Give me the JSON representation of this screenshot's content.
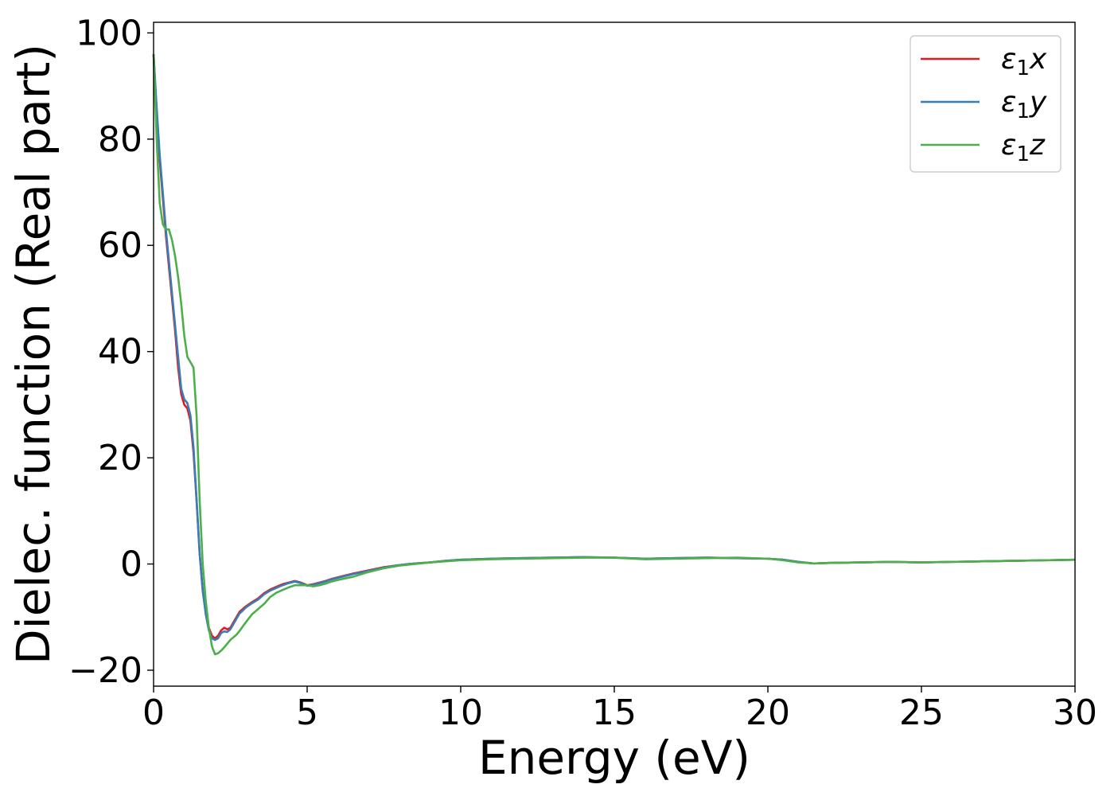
{
  "chart_data": {
    "type": "line",
    "xlabel": "Energy (eV)",
    "ylabel": "Dielec. function (Real part)",
    "xlim": [
      0,
      30
    ],
    "ylim": [
      -23,
      102
    ],
    "x_ticks": [
      0,
      5,
      10,
      15,
      20,
      25,
      30
    ],
    "y_ticks": [
      -20,
      0,
      20,
      40,
      60,
      80,
      100
    ],
    "x_tick_labels": [
      "0",
      "5",
      "10",
      "15",
      "20",
      "25",
      "30"
    ],
    "y_tick_labels": [
      "−20",
      "0",
      "20",
      "40",
      "60",
      "80",
      "100"
    ],
    "grid": false,
    "legend_position": "upper-right",
    "series": [
      {
        "name": "ε1x",
        "color": "#e41a1c",
        "x": [
          0,
          0.1,
          0.2,
          0.3,
          0.4,
          0.5,
          0.6,
          0.7,
          0.8,
          0.9,
          1.0,
          1.1,
          1.2,
          1.3,
          1.4,
          1.5,
          1.6,
          1.7,
          1.8,
          1.9,
          2.0,
          2.1,
          2.2,
          2.3,
          2.4,
          2.5,
          2.6,
          2.7,
          2.8,
          2.9,
          3.0,
          3.2,
          3.4,
          3.6,
          3.8,
          4.0,
          4.2,
          4.4,
          4.6,
          4.8,
          5.0,
          5.2,
          5.4,
          5.6,
          5.8,
          6.0,
          6.5,
          7.0,
          7.5,
          8.0,
          8.5,
          9.0,
          9.5,
          10.0,
          11.0,
          12.0,
          13.0,
          14.0,
          15.0,
          16.0,
          17.0,
          18.0,
          19.0,
          20.0,
          20.5,
          21.0,
          21.5,
          22.0,
          23.0,
          24.0,
          25.0,
          26.0,
          27.0,
          28.0,
          29.0,
          30.0
        ],
        "values": [
          96,
          85,
          76,
          69,
          62,
          56,
          50,
          44,
          37,
          32,
          30,
          29.3,
          27,
          21,
          12,
          2,
          -5,
          -9,
          -12,
          -13.5,
          -14,
          -13.5,
          -12.5,
          -12,
          -12.3,
          -12,
          -11,
          -10,
          -9,
          -8.5,
          -8,
          -7.2,
          -6.5,
          -5.5,
          -4.8,
          -4.3,
          -3.8,
          -3.5,
          -3.2,
          -3.5,
          -4,
          -3.8,
          -3.5,
          -3.2,
          -2.8,
          -2.5,
          -1.8,
          -1.2,
          -0.6,
          -0.2,
          0.1,
          0.3,
          0.6,
          0.8,
          1.0,
          1.1,
          1.2,
          1.3,
          1.2,
          1.0,
          1.1,
          1.2,
          1.1,
          1.0,
          0.8,
          0.4,
          0.1,
          0.2,
          0.3,
          0.4,
          0.3,
          0.4,
          0.5,
          0.6,
          0.7,
          0.8
        ]
      },
      {
        "name": "ε1y",
        "color": "#377eb8",
        "x": [
          0,
          0.1,
          0.2,
          0.3,
          0.4,
          0.5,
          0.6,
          0.7,
          0.8,
          0.9,
          1.0,
          1.1,
          1.2,
          1.3,
          1.4,
          1.5,
          1.6,
          1.7,
          1.8,
          1.9,
          2.0,
          2.1,
          2.2,
          2.3,
          2.4,
          2.5,
          2.6,
          2.7,
          2.8,
          2.9,
          3.0,
          3.2,
          3.4,
          3.6,
          3.8,
          4.0,
          4.2,
          4.4,
          4.6,
          4.8,
          5.0,
          5.2,
          5.4,
          5.6,
          5.8,
          6.0,
          6.5,
          7.0,
          7.5,
          8.0,
          8.5,
          9.0,
          9.5,
          10.0,
          11.0,
          12.0,
          13.0,
          14.0,
          15.0,
          16.0,
          17.0,
          18.0,
          19.0,
          20.0,
          20.5,
          21.0,
          21.5,
          22.0,
          23.0,
          24.0,
          25.0,
          26.0,
          27.0,
          28.0,
          29.0,
          30.0
        ],
        "values": [
          96,
          86,
          77,
          70,
          63,
          57,
          51,
          45,
          39,
          33,
          31,
          30.3,
          28,
          22,
          12,
          2,
          -5,
          -9.5,
          -12.5,
          -14,
          -14.3,
          -14,
          -13,
          -12.7,
          -12.8,
          -12.3,
          -11.3,
          -10.3,
          -9.3,
          -8.8,
          -8.2,
          -7.4,
          -6.7,
          -5.7,
          -5,
          -4.5,
          -4,
          -3.6,
          -3.3,
          -3.6,
          -4.1,
          -3.9,
          -3.6,
          -3.3,
          -2.9,
          -2.6,
          -1.9,
          -1.3,
          -0.7,
          -0.2,
          0.1,
          0.3,
          0.6,
          0.8,
          1.0,
          1.1,
          1.2,
          1.3,
          1.2,
          1.0,
          1.1,
          1.2,
          1.1,
          1.0,
          0.8,
          0.4,
          0.1,
          0.2,
          0.3,
          0.4,
          0.3,
          0.4,
          0.5,
          0.6,
          0.7,
          0.8
        ]
      },
      {
        "name": "ε1z",
        "color": "#4daf4a",
        "x": [
          0,
          0.1,
          0.2,
          0.3,
          0.4,
          0.5,
          0.6,
          0.7,
          0.8,
          0.9,
          1.0,
          1.1,
          1.2,
          1.3,
          1.4,
          1.5,
          1.6,
          1.7,
          1.8,
          1.9,
          2.0,
          2.1,
          2.2,
          2.3,
          2.4,
          2.5,
          2.6,
          2.7,
          2.8,
          2.9,
          3.0,
          3.2,
          3.4,
          3.6,
          3.8,
          4.0,
          4.2,
          4.4,
          4.6,
          4.8,
          5.0,
          5.2,
          5.4,
          5.6,
          5.8,
          6.0,
          6.5,
          7.0,
          7.5,
          8.0,
          8.5,
          9.0,
          9.5,
          10.0,
          11.0,
          12.0,
          13.0,
          14.0,
          15.0,
          16.0,
          17.0,
          18.0,
          19.0,
          20.0,
          20.5,
          21.0,
          21.5,
          22.0,
          23.0,
          24.0,
          25.0,
          26.0,
          27.0,
          28.0,
          29.0,
          30.0
        ],
        "values": [
          96,
          80,
          68,
          64,
          63,
          63,
          61,
          58,
          54,
          49,
          43,
          39,
          38,
          37,
          28,
          12,
          0,
          -7,
          -12,
          -15.5,
          -17,
          -16.8,
          -16.3,
          -15.7,
          -15,
          -14.3,
          -13.8,
          -13.3,
          -12.6,
          -11.8,
          -11,
          -9.5,
          -8.5,
          -7.5,
          -6.2,
          -5.4,
          -4.9,
          -4.4,
          -4,
          -4,
          -4,
          -4.2,
          -4,
          -3.7,
          -3.3,
          -3,
          -2.4,
          -1.5,
          -0.8,
          -0.3,
          0,
          0.3,
          0.5,
          0.7,
          0.9,
          1.0,
          1.1,
          1.2,
          1.2,
          0.9,
          1.0,
          1.1,
          1.2,
          1.0,
          0.7,
          0.3,
          0.1,
          0.2,
          0.3,
          0.4,
          0.3,
          0.4,
          0.5,
          0.6,
          0.7,
          0.8
        ]
      }
    ]
  }
}
